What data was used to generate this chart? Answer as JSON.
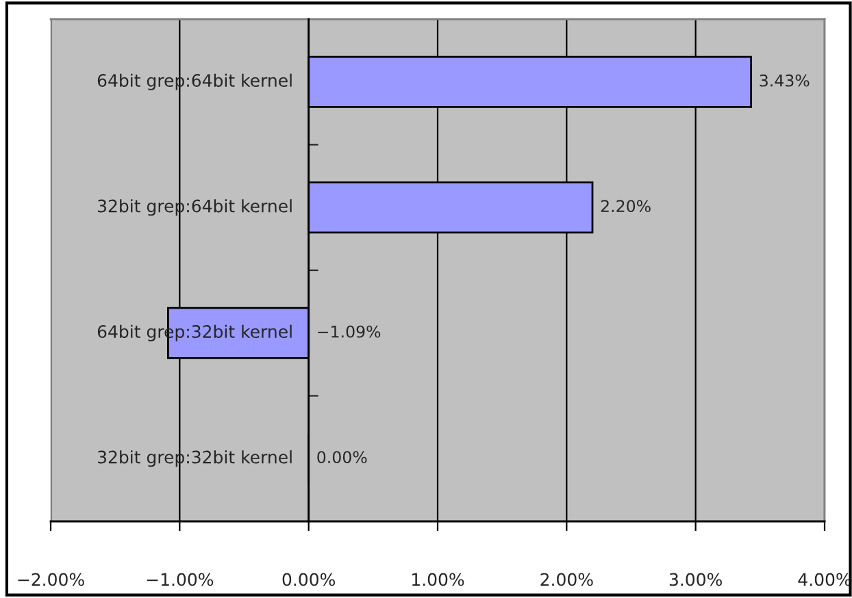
{
  "chart_data": {
    "type": "bar",
    "orientation": "horizontal",
    "categories": [
      "64bit grep:64bit kernel",
      "32bit grep:64bit kernel",
      "64bit grep:32bit kernel",
      "32bit grep:32bit kernel"
    ],
    "values": [
      3.43,
      2.2,
      -1.09,
      0.0
    ],
    "value_labels": [
      "3.43%",
      "2.20%",
      "−1.09%",
      "0.00%"
    ],
    "color": "#9999ff",
    "xlim": [
      -2,
      4
    ],
    "xticks": [
      {
        "value": -2,
        "label": "−2.00%"
      },
      {
        "value": -1,
        "label": "−1.00%"
      },
      {
        "value": 0,
        "label": "0.00%"
      },
      {
        "value": 1,
        "label": "1.00%"
      },
      {
        "value": 2,
        "label": "2.00%"
      },
      {
        "value": 3,
        "label": "3.00%"
      },
      {
        "value": 4,
        "label": "4.00%"
      }
    ],
    "grid": "x"
  }
}
